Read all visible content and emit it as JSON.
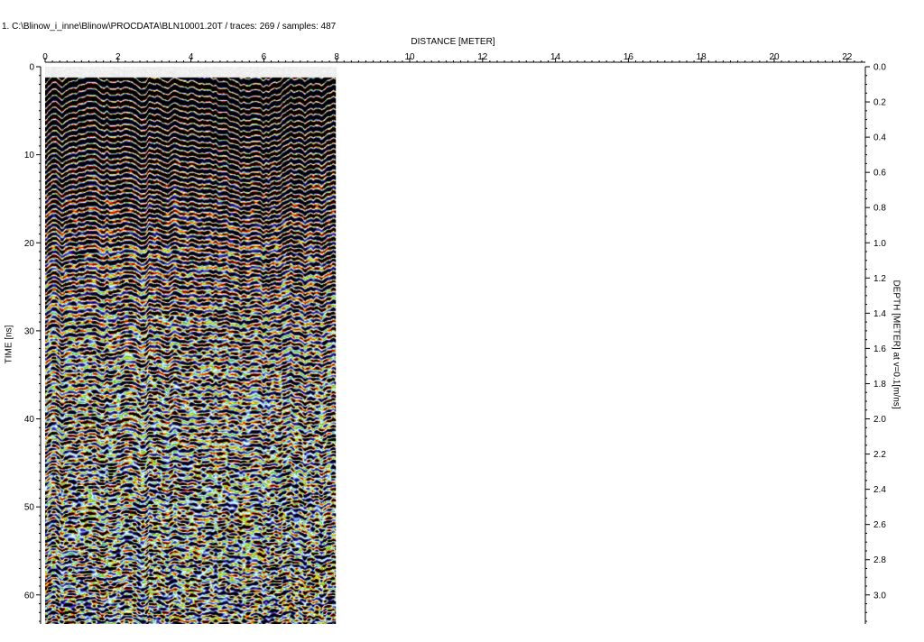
{
  "header": {
    "title": "1. C:\\Blinow_i_inne\\Blinow\\PROCDATA\\BLN10001.20T / traces: 269 / samples: 487"
  },
  "chart_data": {
    "type": "heatmap",
    "title": "1. C:\\Blinow_i_inne\\Blinow\\PROCDATA\\BLN10001.20T / traces: 269 / samples: 487",
    "xlabel": "DISTANCE [METER]",
    "ylabel": "TIME [ns]",
    "y2label": "DEPTH [METER] at v=0.1[m/ns]",
    "xlim": [
      0,
      22.5
    ],
    "ylim": [
      0,
      63.3
    ],
    "y2lim": [
      0,
      3.165
    ],
    "x_ticks": [
      0,
      2,
      4,
      6,
      8,
      10,
      12,
      14,
      16,
      18,
      20,
      22
    ],
    "y_ticks": [
      0,
      10,
      20,
      30,
      40,
      50,
      60
    ],
    "y2_ticks": [
      "0.0",
      "0.2",
      "0.4",
      "0.6",
      "0.8",
      "1.0",
      "1.2",
      "1.4",
      "1.6",
      "1.8",
      "2.0",
      "2.2",
      "2.4",
      "2.6",
      "2.8",
      "3.0"
    ],
    "data_extent_x": [
      0,
      8
    ],
    "traces": 269,
    "samples": 487,
    "colormap": [
      "#000000",
      "#2a0f73",
      "#4d3fc0",
      "#8fd6f5",
      "#ffffff",
      "#44bb44",
      "#f2f22a",
      "#ff1010",
      "#000000"
    ],
    "grid": false
  }
}
